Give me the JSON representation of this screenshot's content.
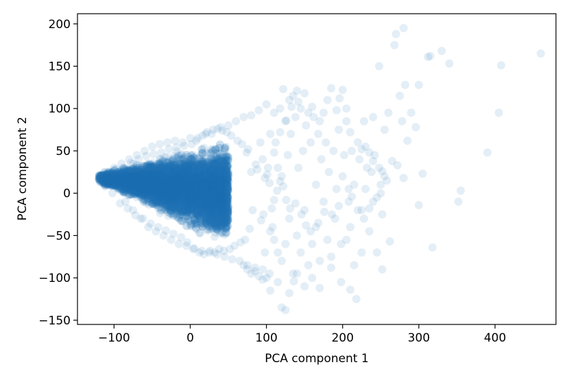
{
  "chart_data": {
    "type": "scatter",
    "title": "",
    "xlabel": "PCA component 1",
    "ylabel": "PCA component 2",
    "xlim": [
      -148,
      480
    ],
    "ylim": [
      -155,
      212
    ],
    "xticks": [
      -100,
      0,
      100,
      200,
      300,
      400
    ],
    "yticks": [
      -150,
      -100,
      -50,
      0,
      50,
      100,
      150,
      200
    ],
    "xtick_labels": [
      "−100",
      "0",
      "100",
      "200",
      "300",
      "400"
    ],
    "ytick_labels": [
      "−150",
      "−100",
      "−50",
      "0",
      "50",
      "100",
      "150",
      "200"
    ],
    "point_color": "#1f77b4",
    "point_alpha": 0.12,
    "grid": false,
    "legend": "none",
    "dense_cluster": {
      "apex": [
        -120,
        18
      ],
      "x_range": [
        -120,
        50
      ],
      "y_range": [
        -70,
        70
      ],
      "approx_count": 9000
    },
    "points": [
      [
        -118,
        17
      ],
      [
        -115,
        22
      ],
      [
        -112,
        15
      ],
      [
        -110,
        10
      ],
      [
        -105,
        25
      ],
      [
        -100,
        30
      ],
      [
        -95,
        5
      ],
      [
        -90,
        35
      ],
      [
        -85,
        -10
      ],
      [
        -80,
        40
      ],
      [
        -75,
        -20
      ],
      [
        -70,
        45
      ],
      [
        -65,
        -30
      ],
      [
        -60,
        50
      ],
      [
        -55,
        -40
      ],
      [
        -50,
        55
      ],
      [
        -45,
        -45
      ],
      [
        -40,
        58
      ],
      [
        -35,
        -50
      ],
      [
        -30,
        60
      ],
      [
        -25,
        -55
      ],
      [
        -20,
        62
      ],
      [
        -15,
        -60
      ],
      [
        -10,
        60
      ],
      [
        -5,
        -62
      ],
      [
        0,
        65
      ],
      [
        5,
        -65
      ],
      [
        10,
        65
      ],
      [
        15,
        -68
      ],
      [
        20,
        70
      ],
      [
        25,
        -70
      ],
      [
        30,
        75
      ],
      [
        35,
        -72
      ],
      [
        40,
        78
      ],
      [
        45,
        -75
      ],
      [
        50,
        80
      ],
      [
        55,
        -78
      ],
      [
        60,
        85
      ],
      [
        65,
        -80
      ],
      [
        70,
        90
      ],
      [
        75,
        -85
      ],
      [
        80,
        92
      ],
      [
        85,
        -88
      ],
      [
        90,
        98
      ],
      [
        92,
        60
      ],
      [
        95,
        -90
      ],
      [
        95,
        40
      ],
      [
        98,
        -70
      ],
      [
        100,
        105
      ],
      [
        102,
        30
      ],
      [
        104,
        -95
      ],
      [
        105,
        70
      ],
      [
        108,
        -40
      ],
      [
        110,
        95
      ],
      [
        112,
        60
      ],
      [
        115,
        -105
      ],
      [
        118,
        100
      ],
      [
        120,
        20
      ],
      [
        120,
        -80
      ],
      [
        122,
        123
      ],
      [
        125,
        -60
      ],
      [
        125,
        85
      ],
      [
        128,
        45
      ],
      [
        130,
        -30
      ],
      [
        130,
        110
      ],
      [
        132,
        70
      ],
      [
        135,
        -95
      ],
      [
        138,
        90
      ],
      [
        140,
        121
      ],
      [
        140,
        -50
      ],
      [
        142,
        30
      ],
      [
        145,
        -70
      ],
      [
        145,
        100
      ],
      [
        148,
        50
      ],
      [
        150,
        -20
      ],
      [
        152,
        80
      ],
      [
        155,
        -85
      ],
      [
        158,
        60
      ],
      [
        160,
        -60
      ],
      [
        162,
        90
      ],
      [
        165,
        10
      ],
      [
        165,
        -40
      ],
      [
        168,
        70
      ],
      [
        170,
        -80
      ],
      [
        172,
        40
      ],
      [
        175,
        -10
      ],
      [
        178,
        60
      ],
      [
        180,
        -55
      ],
      [
        182,
        25
      ],
      [
        185,
        124
      ],
      [
        185,
        -75
      ],
      [
        188,
        50
      ],
      [
        190,
        -30
      ],
      [
        192,
        5
      ],
      [
        195,
        75
      ],
      [
        198,
        -60
      ],
      [
        200,
        20
      ],
      [
        200,
        122
      ],
      [
        202,
        45
      ],
      [
        205,
        -55
      ],
      [
        205,
        85
      ],
      [
        208,
        5
      ],
      [
        210,
        -40
      ],
      [
        212,
        50
      ],
      [
        215,
        -85
      ],
      [
        215,
        10
      ],
      [
        218,
        -125
      ],
      [
        220,
        -20
      ],
      [
        222,
        40
      ],
      [
        225,
        -70
      ],
      [
        228,
        85
      ],
      [
        230,
        5
      ],
      [
        232,
        30
      ],
      [
        235,
        -45
      ],
      [
        238,
        25
      ],
      [
        240,
        90
      ],
      [
        245,
        -70
      ],
      [
        248,
        150
      ],
      [
        250,
        10
      ],
      [
        252,
        -90
      ],
      [
        255,
        75
      ],
      [
        260,
        95
      ],
      [
        262,
        -57
      ],
      [
        265,
        38
      ],
      [
        268,
        175
      ],
      [
        270,
        188
      ],
      [
        272,
        33
      ],
      [
        275,
        115
      ],
      [
        278,
        85
      ],
      [
        280,
        195
      ],
      [
        280,
        18
      ],
      [
        282,
        128
      ],
      [
        285,
        62
      ],
      [
        290,
        95
      ],
      [
        296,
        78
      ],
      [
        300,
        -14
      ],
      [
        300,
        128
      ],
      [
        305,
        23
      ],
      [
        312,
        161
      ],
      [
        315,
        162
      ],
      [
        318,
        -64
      ],
      [
        330,
        168
      ],
      [
        340,
        153
      ],
      [
        352,
        -10
      ],
      [
        355,
        3
      ],
      [
        390,
        48
      ],
      [
        405,
        95
      ],
      [
        408,
        151
      ],
      [
        460,
        165
      ],
      [
        120,
        -135
      ],
      [
        125,
        -138
      ],
      [
        136,
        -104
      ],
      [
        170,
        -112
      ],
      [
        210,
        -114
      ],
      [
        198,
        -105
      ],
      [
        185,
        -88
      ],
      [
        160,
        -100
      ],
      [
        150,
        -110
      ],
      [
        140,
        -95
      ],
      [
        130,
        -118
      ],
      [
        105,
        -115
      ],
      [
        100,
        -100
      ],
      [
        95,
        -102
      ],
      [
        90,
        -98
      ],
      [
        85,
        -92
      ],
      [
        80,
        -95
      ],
      [
        75,
        -90
      ],
      [
        70,
        -85
      ],
      [
        115,
        -70
      ],
      [
        110,
        -55
      ],
      [
        105,
        -45
      ],
      [
        110,
        48
      ],
      [
        115,
        30
      ],
      [
        118,
        72
      ],
      [
        126,
        86
      ],
      [
        133,
        102
      ],
      [
        135,
        115
      ],
      [
        142,
        108
      ],
      [
        150,
        118
      ],
      [
        155,
        95
      ],
      [
        160,
        102
      ],
      [
        170,
        85
      ],
      [
        175,
        95
      ],
      [
        180,
        110
      ],
      [
        192,
        98
      ],
      [
        196,
        112
      ],
      [
        205,
        100
      ],
      [
        210,
        72
      ],
      [
        220,
        60
      ],
      [
        225,
        52
      ],
      [
        230,
        55
      ],
      [
        235,
        48
      ],
      [
        240,
        38
      ],
      [
        242,
        45
      ],
      [
        248,
        30
      ],
      [
        252,
        26
      ],
      [
        255,
        20
      ],
      [
        258,
        15
      ],
      [
        225,
        -20
      ],
      [
        228,
        -30
      ],
      [
        235,
        -18
      ],
      [
        240,
        -10
      ],
      [
        245,
        -5
      ],
      [
        250,
        0
      ],
      [
        252,
        -25
      ],
      [
        208,
        -10
      ],
      [
        212,
        -4
      ],
      [
        195,
        -15
      ],
      [
        186,
        -25
      ],
      [
        176,
        -22
      ],
      [
        168,
        -35
      ],
      [
        158,
        -45
      ],
      [
        152,
        -38
      ],
      [
        146,
        -25
      ],
      [
        138,
        -12
      ],
      [
        131,
        -18
      ],
      [
        126,
        -8
      ],
      [
        122,
        8
      ],
      [
        118,
        14
      ],
      [
        114,
        3
      ],
      [
        110,
        -8
      ],
      [
        107,
        -18
      ],
      [
        104,
        12
      ],
      [
        101,
        22
      ],
      [
        98,
        18
      ],
      [
        96,
        -25
      ],
      [
        93,
        -32
      ],
      [
        88,
        28
      ],
      [
        86,
        34
      ],
      [
        82,
        -20
      ],
      [
        80,
        25
      ],
      [
        78,
        -42
      ],
      [
        76,
        52
      ],
      [
        74,
        48
      ],
      [
        72,
        -55
      ],
      [
        68,
        58
      ],
      [
        66,
        -58
      ],
      [
        62,
        62
      ],
      [
        58,
        -62
      ],
      [
        54,
        68
      ],
      [
        52,
        -66
      ],
      [
        48,
        72
      ],
      [
        44,
        -68
      ],
      [
        42,
        74
      ],
      [
        38,
        -66
      ],
      [
        36,
        76
      ],
      [
        32,
        -70
      ],
      [
        28,
        70
      ],
      [
        26,
        -68
      ],
      [
        22,
        72
      ],
      [
        18,
        -72
      ],
      [
        16,
        68
      ],
      [
        12,
        -70
      ],
      [
        8,
        62
      ],
      [
        4,
        -66
      ],
      [
        2,
        58
      ],
      [
        -4,
        -58
      ],
      [
        -8,
        56
      ],
      [
        -12,
        -52
      ],
      [
        -18,
        54
      ],
      [
        -22,
        -48
      ],
      [
        -28,
        52
      ],
      [
        -32,
        -44
      ],
      [
        -38,
        48
      ],
      [
        -42,
        -40
      ],
      [
        -48,
        46
      ],
      [
        -52,
        -36
      ],
      [
        -58,
        44
      ],
      [
        -62,
        -30
      ],
      [
        -68,
        40
      ],
      [
        -72,
        -26
      ],
      [
        -78,
        36
      ],
      [
        -82,
        -18
      ],
      [
        -88,
        30
      ],
      [
        -92,
        -12
      ],
      [
        -98,
        24
      ],
      [
        -102,
        0
      ],
      [
        -108,
        20
      ],
      [
        -112,
        8
      ]
    ]
  }
}
